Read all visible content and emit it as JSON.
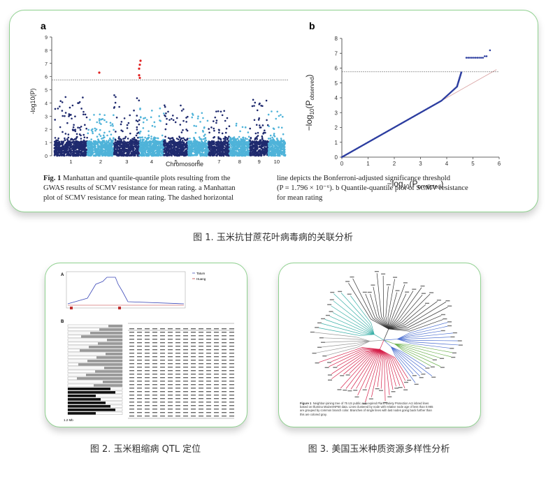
{
  "figure1": {
    "panel_a_letter": "a",
    "panel_b_letter": "b",
    "manhattan": {
      "ylabel": "-log10(P)",
      "xlabel": "Chromosome",
      "yticks": [
        "0",
        "1",
        "2",
        "3",
        "4",
        "5",
        "6",
        "7",
        "8",
        "9"
      ],
      "chromosomes": [
        "1",
        "2",
        "3",
        "4",
        "5",
        "6",
        "7",
        "8",
        "9",
        "10"
      ],
      "threshold": 5.75,
      "colors": {
        "dark": "#1f2a6e",
        "light": "#4fb3d9",
        "hit": "#e02020"
      }
    },
    "qq": {
      "ylabel_prefix": "−log",
      "ylabel_sub": "10",
      "ylabel_paren": "(P",
      "ylabel_paren_sub": "observed",
      "ylabel_close": ")",
      "xlabel_prefix": "−log",
      "xlabel_sub": "10",
      "xlabel_paren": "(P",
      "xlabel_paren_sub": "predicted",
      "xlabel_close": ")",
      "yticks": [
        "0",
        "1",
        "2",
        "3",
        "4",
        "5",
        "6",
        "7",
        "8"
      ],
      "xticks": [
        "0",
        "1",
        "2",
        "3",
        "4",
        "5",
        "6"
      ],
      "threshold": 5.75
    },
    "caption_left": [
      {
        "bold": "Fig. 1",
        "text": "  Manhattan and quantile-quantile plots resulting from the"
      },
      {
        "bold": "",
        "text": "GWAS results of SCMV resistance for mean rating. a Manhattan"
      },
      {
        "bold": "",
        "text": "plot of SCMV resistance for mean rating. The dashed horizontal"
      }
    ],
    "caption_right": [
      "line depicts the Bonferroni-adjusted significance threshold",
      "(P = 1.796 × 10⁻⁶). b Quantile-quantile plot of SCMV resistance",
      "for mean rating"
    ]
  },
  "figure2": {
    "panel_a": "A",
    "panel_b": "B",
    "legend": [
      "Tatum",
      "Huang"
    ],
    "scale_label": "1.2 Mb"
  },
  "figure3": {
    "caption_bold": "Figure 1",
    "caption_lines": [
      "Neighbor-joining tree of 75 US public and expired Plant Variety Protection Act inbred lines",
      "based on Illumina MaizeSNP50 data. Lines clustered by node with relative node age of less than 0.965",
      "are grouped by common branch color. Branches of single lines with last nodes going back further than",
      "this are colored gray."
    ]
  },
  "captions": {
    "fig1": "图 1. 玉米抗甘蔗花叶病毒病的关联分析",
    "fig2": "图 2. 玉米粗缩病 QTL 定位",
    "fig3": "图 3. 美国玉米种质资源多样性分析"
  }
}
